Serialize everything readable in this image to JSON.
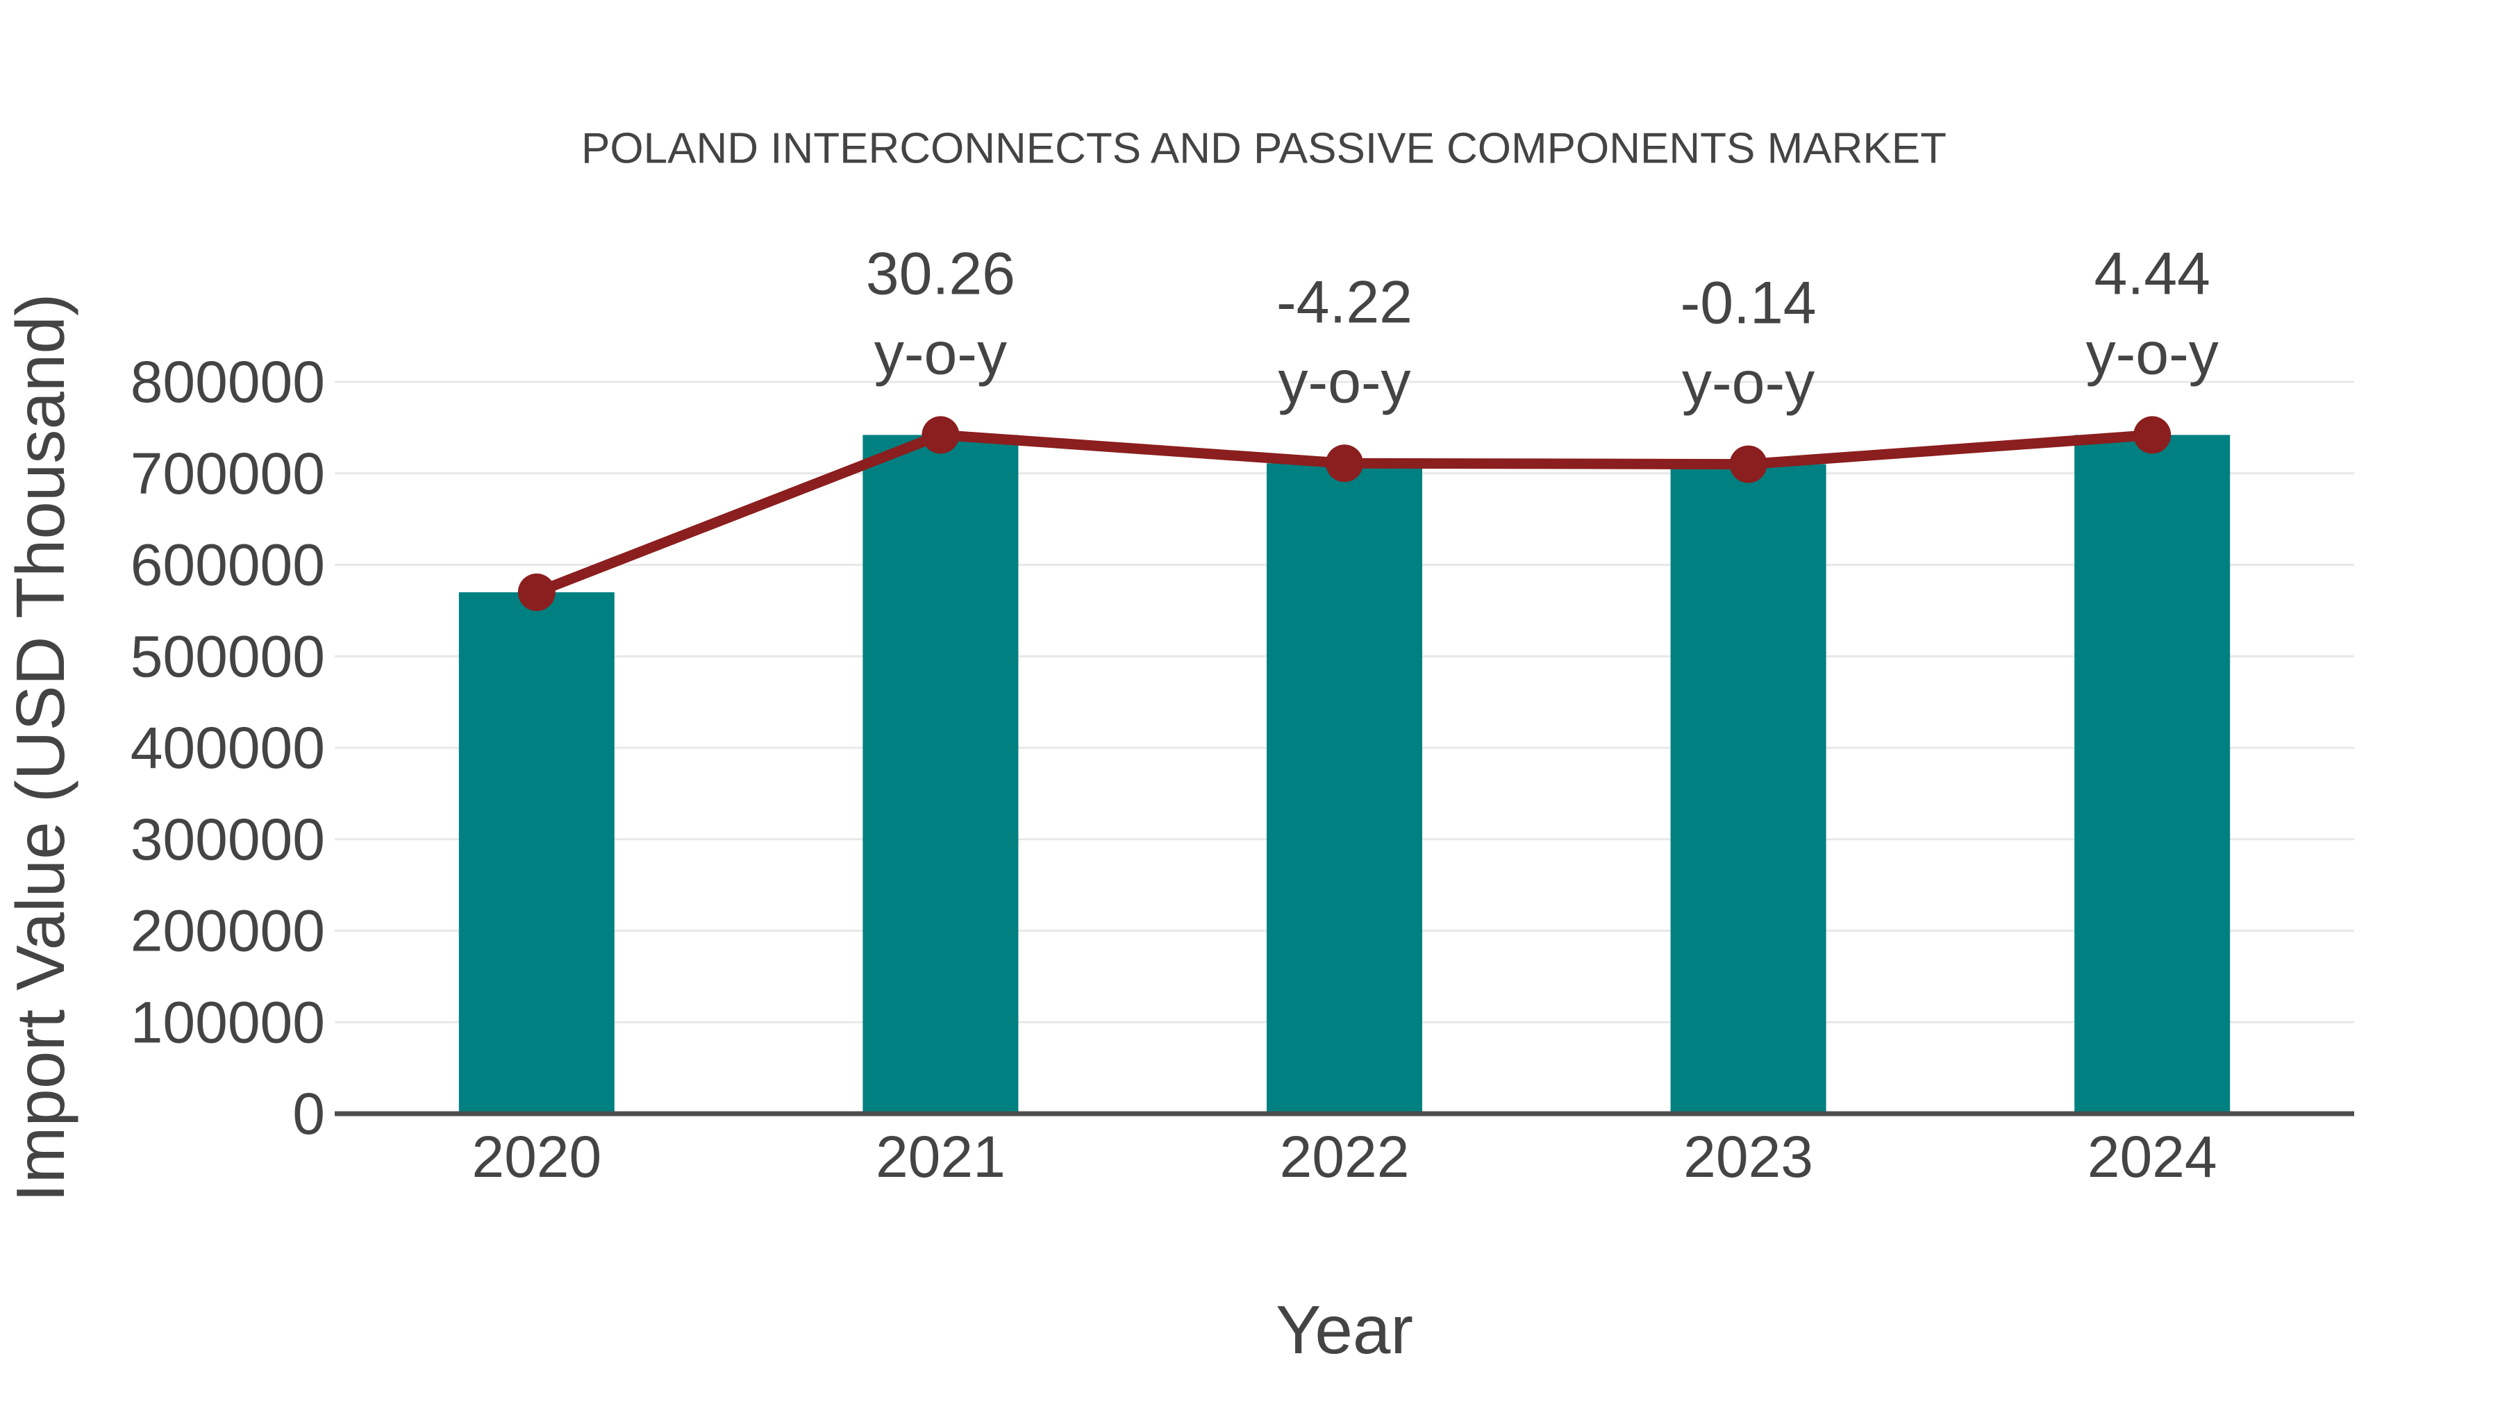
{
  "chart_data": {
    "type": "bar",
    "title": "POLAND INTERCONNECTS AND PASSIVE COMPONENTS MARKET",
    "xlabel": "Year",
    "ylabel": "Import Value (USD Thousand)",
    "categories": [
      "2020",
      "2021",
      "2022",
      "2023",
      "2024"
    ],
    "series": [
      {
        "name": "import-value-bars",
        "type": "bar",
        "values": [
          570000,
          742000,
          711000,
          710000,
          742000
        ]
      },
      {
        "name": "import-value-trend",
        "type": "line",
        "values": [
          570000,
          742000,
          711000,
          710000,
          742000
        ]
      }
    ],
    "yoy_annotations": [
      {
        "category": "2021",
        "value": "30.26",
        "label": "y-o-y"
      },
      {
        "category": "2022",
        "value": "-4.22",
        "label": "y-o-y"
      },
      {
        "category": "2023",
        "value": "-0.14",
        "label": "y-o-y"
      },
      {
        "category": "2024",
        "value": "4.44",
        "label": "y-o-y"
      }
    ],
    "yticks": [
      0,
      100000,
      200000,
      300000,
      400000,
      500000,
      600000,
      700000,
      800000
    ],
    "ylim": [
      0,
      800000
    ],
    "grid": "horizontal-light",
    "legend": "none",
    "colors": {
      "bar": "#008080",
      "line": "#8B1E1E",
      "marker": "#8B1E1E",
      "text": "#444444",
      "grid": "#E8E8E8",
      "axis": "#4D4D4D",
      "background": "#FFFFFF"
    }
  }
}
